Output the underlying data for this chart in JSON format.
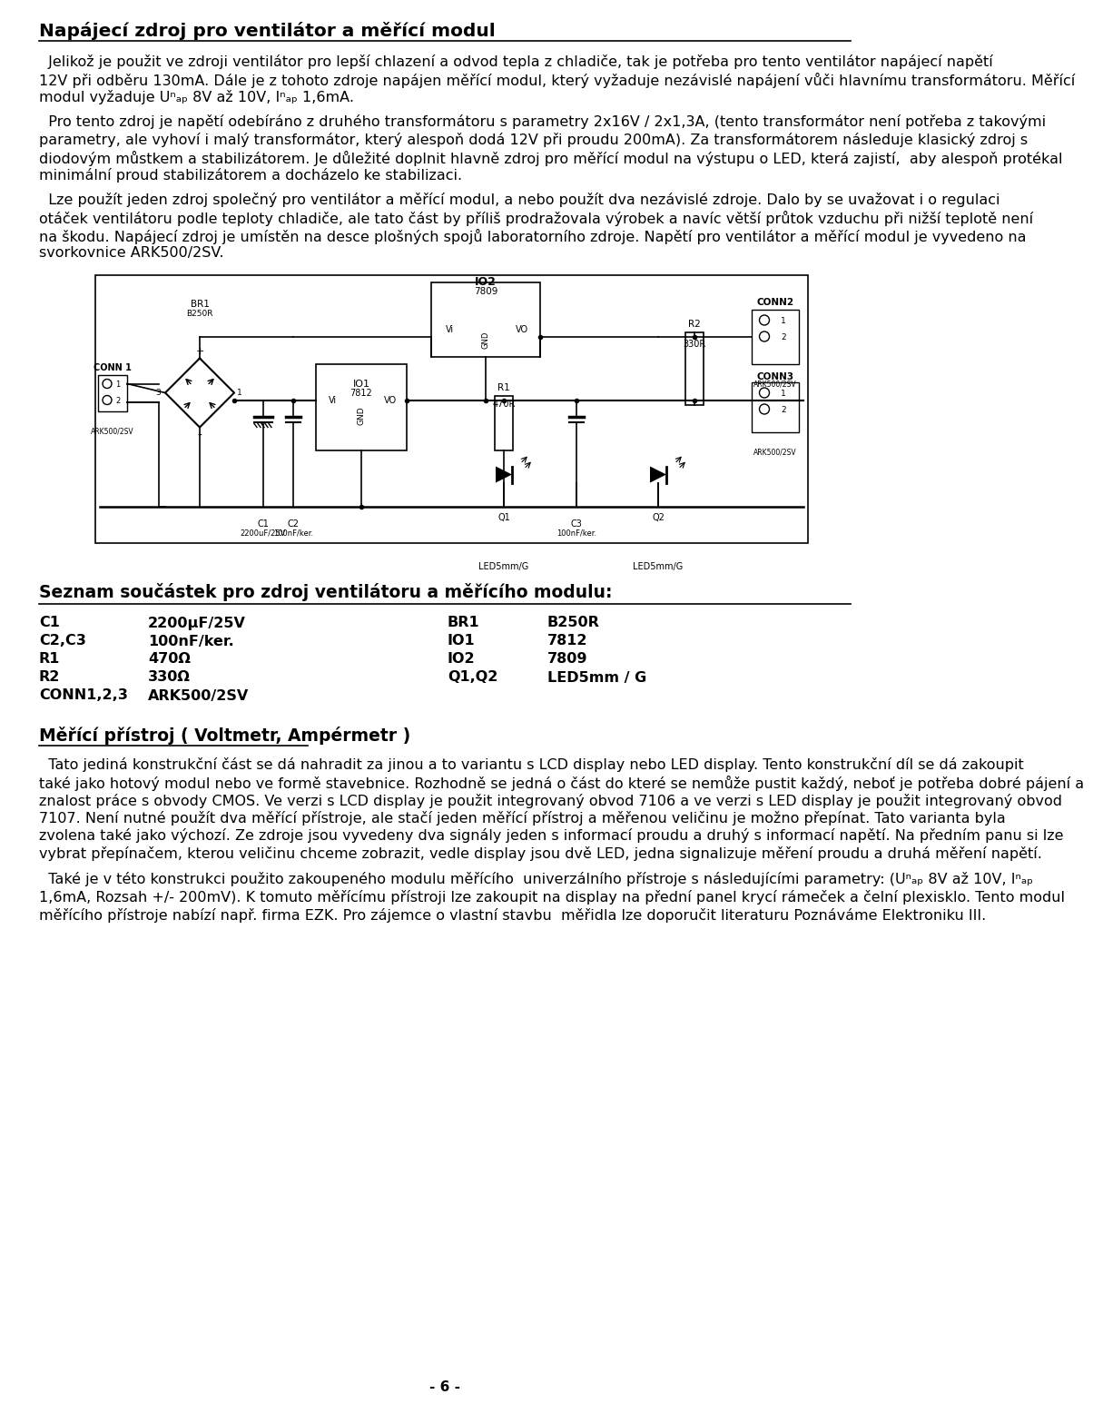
{
  "title": "Napájecí zdroj pro ventilátor a měřící modul",
  "p1": "  Jelikož je použit ve zdroji ventilátor pro lepší chlazení a odvod tepla z chladiče, tak je potřeba pro tento ventilátor napájecí napětí 12V při odběru 130mA. Dále je z tohoto zdroje napájen měřící modul, který vyžaduje nezávislé napájení vůči hlavnímu transformátoru. Měřící modul vyžaduje U_nap 8V až 10V, I_nap 1,6mA.",
  "p2": "  Pro tento zdroj je napětí odebíráno z druhého transformátoru s parametry 2x16V / 2x1,3A, (tento transformátor není potřeba z takovými parametry, ale vyhoví i malý transformátor, který alespoň dodá 12V při proudu 200mA). Za transformátorem následuje klasický zdroj s diodovým můstkem a stabilizátorem. Je důležité doplnit hlavně zdroj pro měřící modul na výstupu o LED, která zajistí,  aby alespoň protékal minimální proud stabilizátorem a docházelo ke stabilizaci.",
  "p3": "  Lze použít jeden zdroj společný pro ventilátor a měřící modul, a nebo použít dva nezávislé zdroje. Dalo by se uvažovat i o regulaci otáček ventilátoru podle teploty chladiče, ale tato část by příliš prodražovala výrobek a navíc větší průtok vzduchu při nižší teplotě není na škodu. Napájecí zdroj je umístěn na desce plošných spojů laboratorního zdroje. Napětí pro ventilátor a měřící modul je vyvedeno na svorkovnice ARK500/2SV.",
  "section2_title": "Seznam součástek pro zdroj ventilátoru a měřícího modulu:",
  "components_left": [
    [
      "C1",
      "2200μF/25V"
    ],
    [
      "C2,C3",
      "100nF/ker."
    ],
    [
      "R1",
      "470Ω"
    ],
    [
      "R2",
      "330Ω"
    ],
    [
      "CONN1,2,3",
      "ARK500/2SV"
    ]
  ],
  "components_right": [
    [
      "BR1",
      "B250R"
    ],
    [
      "IO1",
      "7812"
    ],
    [
      "IO2",
      "7809"
    ],
    [
      "Q1,Q2",
      "LED5mm / G"
    ]
  ],
  "section3_title": "Měřící přístroj ( Voltmetr, Ampérmetr )",
  "p4": "  Tato jediná konstrukční část se dá nahradit za jinou a to variantu s LCD display nebo LED display. Tento konstrukční díl se dá zakoupit také jako hotový modul nebo ve formě stavebnice. Rozhodně se jedná o část do které se nemůže pustit každý, neboť je potřeba dobré pájení a znalost práce s obvody CMOS. Ve verzi s LCD display je použit integrovaný obvod 7106 a ve verzi s LED display je použit integrovaný obvod 7107. Není nutné použít dva měřící přístroje, ale stačí jeden měřící přístroj a měřenou veličinu je možno přepínat. Tato varianta byla zvolena také jako výchozí. Ze zdroje jsou vyvedeny dva signály jeden s informací proudu a druhý s informací napětí. Na předním panu si lze vybrat přepínačem, kterou veličinu chceme zobrazit, vedle display jsou dvě LED, jedna signalizuje měření proudu a druhá měření napětí.",
  "p5": "  Také je v této konstrukci použito zakoupeného modulu měřícího  univerzálního přístroje s následujícími parametry: (U_nap 8V až 10V, I_nap 1,6mA, Rozsah +/- 200mV). K tomuto měřícímu přístroji lze zakoupit na display na přední panel krycí rámeček a čelní plexisklo. Tento modul měřícího přístroje nabízí např. firma EZK. Pro zájemce o vlastní stavbu  měřidla lze doporučit literaturu Poznáváme Elektroniku III.",
  "page_number": "- 6 -",
  "bg_color": "#ffffff",
  "text_color": "#000000",
  "body_fontsize": 11.5,
  "comp_fontsize": 11.5
}
